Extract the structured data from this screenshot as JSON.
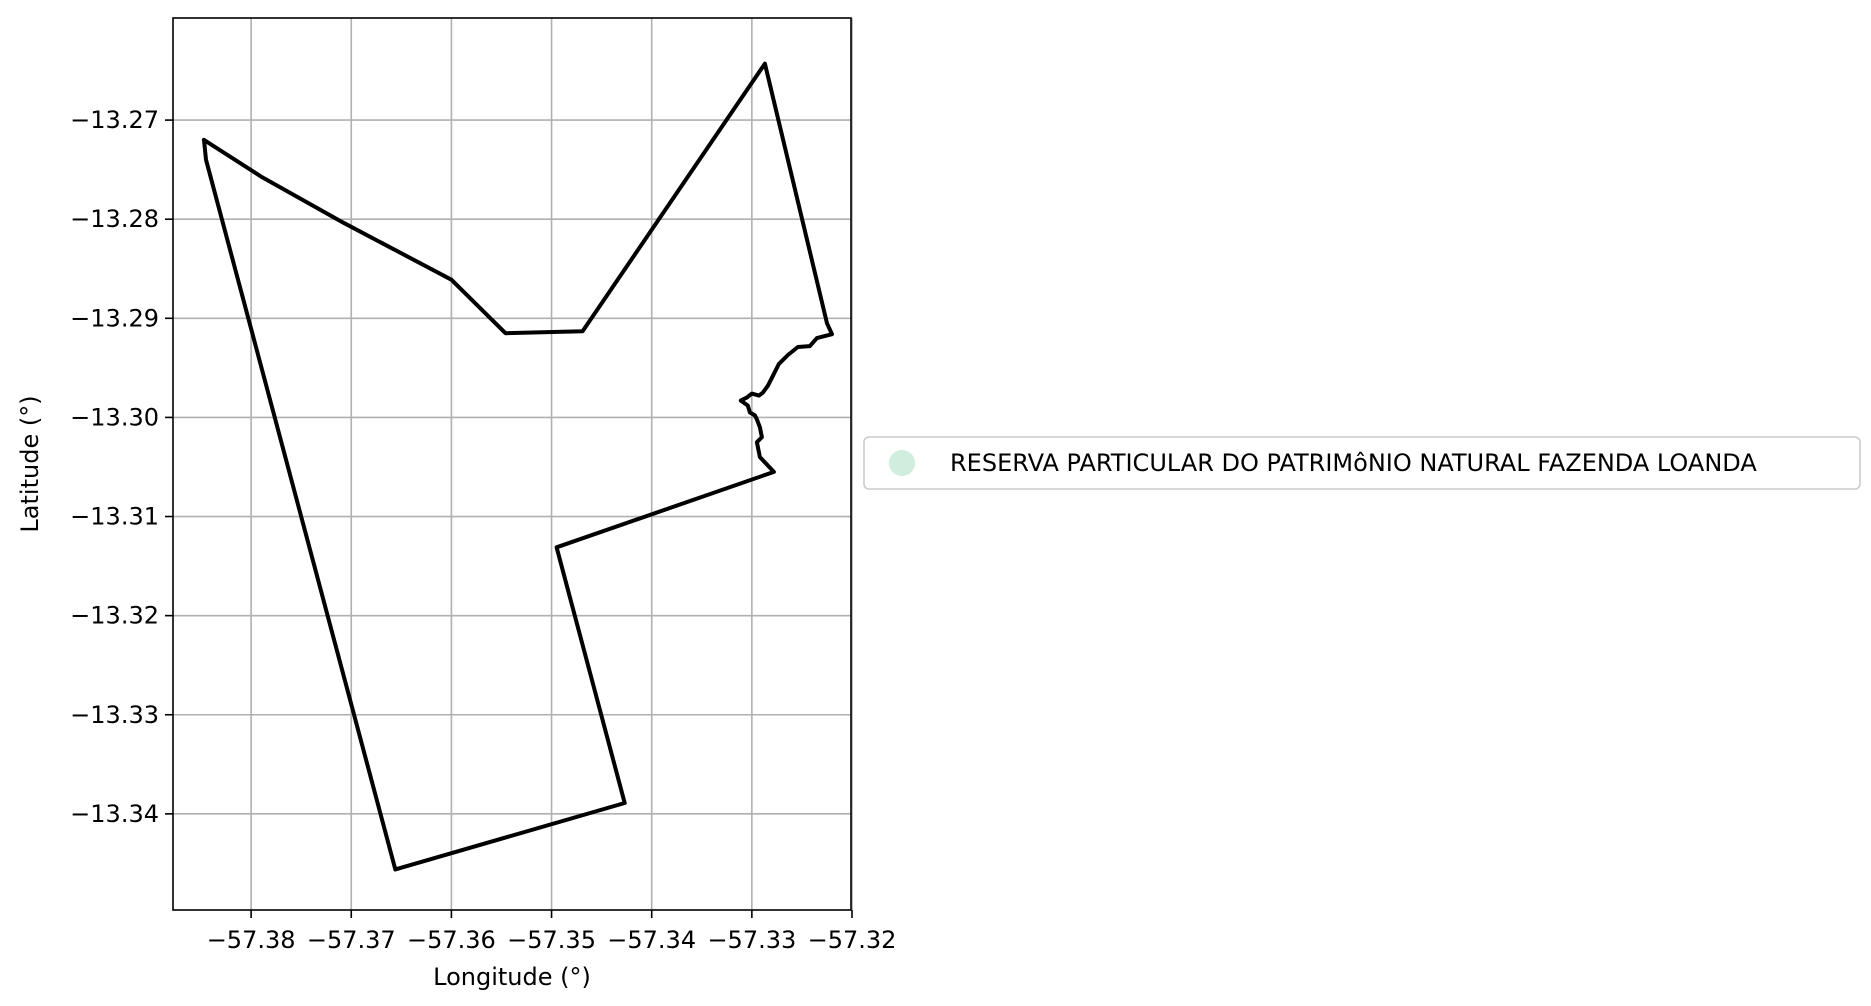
{
  "chart_data": {
    "type": "line",
    "title": "",
    "xlabel": "Longitude (°)",
    "ylabel": "Latitude (°)",
    "xlim": [
      -57.3878,
      -57.3201
    ],
    "ylim": [
      -13.3497,
      -13.2597
    ],
    "grid": true,
    "x_ticks": [
      {
        "value": -57.38,
        "label": "−57.38"
      },
      {
        "value": -57.37,
        "label": "−57.37"
      },
      {
        "value": -57.36,
        "label": "−57.36"
      },
      {
        "value": -57.35,
        "label": "−57.35"
      },
      {
        "value": -57.34,
        "label": "−57.34"
      },
      {
        "value": -57.33,
        "label": "−57.33"
      },
      {
        "value": -57.32,
        "label": "−57.32"
      }
    ],
    "y_ticks": [
      {
        "value": -13.27,
        "label": "−13.27"
      },
      {
        "value": -13.28,
        "label": "−13.28"
      },
      {
        "value": -13.29,
        "label": "−13.29"
      },
      {
        "value": -13.3,
        "label": "−13.30"
      },
      {
        "value": -13.31,
        "label": "−13.31"
      },
      {
        "value": -13.32,
        "label": "−13.32"
      },
      {
        "value": -13.33,
        "label": "−13.33"
      },
      {
        "value": -13.34,
        "label": "−13.34"
      }
    ],
    "legend": {
      "placement": "center-right outside",
      "entries": [
        {
          "label": "RESERVA PARTICULAR DO PATRIMôNIO NATURAL FAZENDA LOANDA",
          "color": "#cfeedd",
          "marker": "circle"
        }
      ]
    },
    "series": [
      {
        "name": "RESERVA PARTICULAR DO PATRIMôNIO NATURAL FAZENDA LOANDA",
        "color": "#000000",
        "x": [
          -57.3847,
          -57.379,
          -57.3707,
          -57.36,
          -57.3546,
          -57.3469,
          -57.3287,
          -57.3225,
          -57.322,
          -57.3235,
          -57.3242,
          -57.3254,
          -57.3264,
          -57.3273,
          -57.328,
          -57.3284,
          -57.3289,
          -57.3293,
          -57.33,
          -57.3305,
          -57.3311,
          -57.3304,
          -57.3302,
          -57.3297,
          -57.3295,
          -57.3292,
          -57.329,
          -57.3295,
          -57.3292,
          -57.3278,
          -57.3495,
          -57.3427,
          -57.3656,
          -57.3845,
          -57.3847
        ],
        "y": [
          -13.272,
          -13.2757,
          -13.2804,
          -13.2861,
          -13.2915,
          -13.2913,
          -13.2643,
          -13.2905,
          -13.2916,
          -13.292,
          -13.2928,
          -13.2929,
          -13.2937,
          -13.2946,
          -13.296,
          -13.2968,
          -13.2975,
          -13.2978,
          -13.2976,
          -13.298,
          -13.2983,
          -13.2988,
          -13.2995,
          -13.2998,
          -13.3002,
          -13.301,
          -13.302,
          -13.3025,
          -13.304,
          -13.3055,
          -13.3131,
          -13.3389,
          -13.3456,
          -13.274,
          -13.272
        ]
      }
    ]
  }
}
